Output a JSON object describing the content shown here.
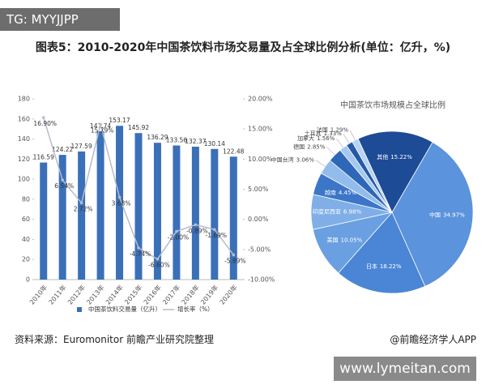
{
  "header": {
    "tag": "TG: MYYJJPP"
  },
  "title": "图表5：2010-2020年中国茶饮料市场交易量及占全球比例分析(单位：亿升，%)",
  "chart_data": [
    {
      "type": "combo",
      "categories": [
        "2010年",
        "2011年",
        "2012年",
        "2013年",
        "2014年",
        "2015年",
        "2016年",
        "2017年",
        "2018年",
        "2019年",
        "2020年"
      ],
      "series": [
        {
          "name": "中国茶饮料交易量（亿升）",
          "type": "bar",
          "color": "#3a70b8",
          "values": [
            116.59,
            124.22,
            127.59,
            147.74,
            153.17,
            145.92,
            136.29,
            133.56,
            132.37,
            130.14,
            122.48
          ]
        },
        {
          "name": "增长率（%）",
          "type": "line",
          "axis": "y2",
          "color": "#b4bccb",
          "values": [
            16.9,
            6.54,
            2.72,
            15.79,
            3.68,
            -4.74,
            -6.6,
            -2.0,
            -0.89,
            -1.69,
            -5.89
          ],
          "value_labels": [
            "16.90%",
            "6.54%",
            "2.72%",
            "15.79%",
            "3.68%",
            "-4.74%",
            "-6.60%",
            "-2.00%",
            "-0.89%",
            "-1.69%",
            "-5.89%"
          ]
        }
      ],
      "ylim": [
        0,
        180
      ],
      "yticks": [
        0,
        20,
        40,
        60,
        80,
        100,
        120,
        140,
        160,
        180
      ],
      "y2lim": [
        -10,
        20
      ],
      "y2ticks": [
        {
          "value": -10,
          "label": "-10.00%"
        },
        {
          "value": -5,
          "label": "-5.00%"
        },
        {
          "value": 0,
          "label": "0.00%"
        },
        {
          "value": 5,
          "label": "5.00%"
        },
        {
          "value": 10,
          "label": "10.00%"
        },
        {
          "value": 15,
          "label": "15.00%"
        },
        {
          "value": 20,
          "label": "20.00%"
        }
      ]
    },
    {
      "type": "pie",
      "title": "中国茶饮市场规模占全球比例",
      "categories": [
        "中国",
        "日本",
        "美国",
        "印度尼西亚",
        "越南",
        "中国台湾",
        "德国",
        "加拿大",
        "土耳其",
        "法国",
        "其他"
      ],
      "values": [
        34.97,
        18.22,
        10.05,
        6.98,
        4.45,
        3.06,
        2.85,
        1.56,
        1.33,
        1.29,
        15.22
      ],
      "value_labels": [
        "34.97%",
        "18.22%",
        "10.05%",
        "6.98%",
        "4.45%",
        "3.06%",
        "2.85%",
        "1.56%",
        "1.33%",
        "1.29%",
        "15.22%"
      ],
      "colors": [
        "#5b93dd",
        "#4b86d6",
        "#6aa0e2",
        "#80afe8",
        "#3c76c8",
        "#92bcec",
        "#2f67b8",
        "#a4c8f0",
        "#255aa6",
        "#b6d3f4",
        "#1d4b96"
      ]
    }
  ],
  "footer": {
    "source": "资料来源：Euromonitor 前瞻产业研究院整理",
    "brand": "@前瞻经济学人APP",
    "watermark": "www.lymeitan.com"
  }
}
